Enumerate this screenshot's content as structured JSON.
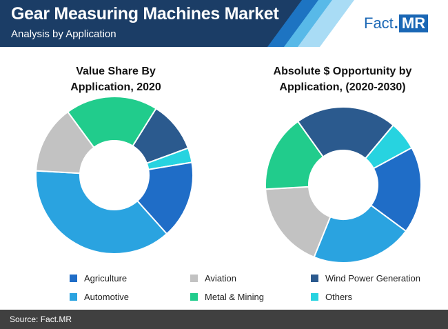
{
  "header": {
    "title": "Gear Measuring Machines Market",
    "subtitle": "Analysis by Application",
    "colors": {
      "dark": "#1b3d66",
      "mid": "#1d74c2",
      "light": "#58b9e8",
      "pale": "#a9dcf5"
    }
  },
  "logo": {
    "part1": "Fact",
    "dot": ".",
    "part2": "MR",
    "color": "#1a67b5"
  },
  "footer": {
    "source": "Source: Fact.MR"
  },
  "chart_data": [
    {
      "type": "pie",
      "title": "Value Share By Application, 2020",
      "title_lines": [
        "Value Share By",
        "Application, 2020"
      ],
      "donut": true,
      "categories": [
        "Wind Power Generation",
        "Others",
        "Agriculture",
        "Automotive",
        "Aviation",
        "Metal & Mining"
      ],
      "values": [
        10.5,
        3,
        16,
        37.5,
        14,
        19
      ]
    },
    {
      "type": "pie",
      "title": "Absolute $ Opportunity by Application, (2020-2030)",
      "title_lines": [
        "Absolute $ Opportunity by",
        "Application, (2020-2030)"
      ],
      "donut": true,
      "categories": [
        "Others",
        "Agriculture",
        "Automotive",
        "Aviation",
        "Metal & Mining",
        "Wind Power Generation"
      ],
      "values": [
        6,
        18,
        21,
        18,
        16,
        21
      ]
    }
  ],
  "legend": [
    {
      "label": "Agriculture",
      "color": "#1f6dc7"
    },
    {
      "label": "Aviation",
      "color": "#c2c2c2"
    },
    {
      "label": "Wind Power Generation",
      "color": "#2b5a8e"
    },
    {
      "label": "Automotive",
      "color": "#2aa3e0"
    },
    {
      "label": "Metal & Mining",
      "color": "#21cc8c"
    },
    {
      "label": "Others",
      "color": "#27d3e0"
    }
  ],
  "category_colors": {
    "Agriculture": "#1f6dc7",
    "Aviation": "#c2c2c2",
    "Wind Power Generation": "#2b5a8e",
    "Automotive": "#2aa3e0",
    "Metal & Mining": "#21cc8c",
    "Others": "#27d3e0"
  }
}
